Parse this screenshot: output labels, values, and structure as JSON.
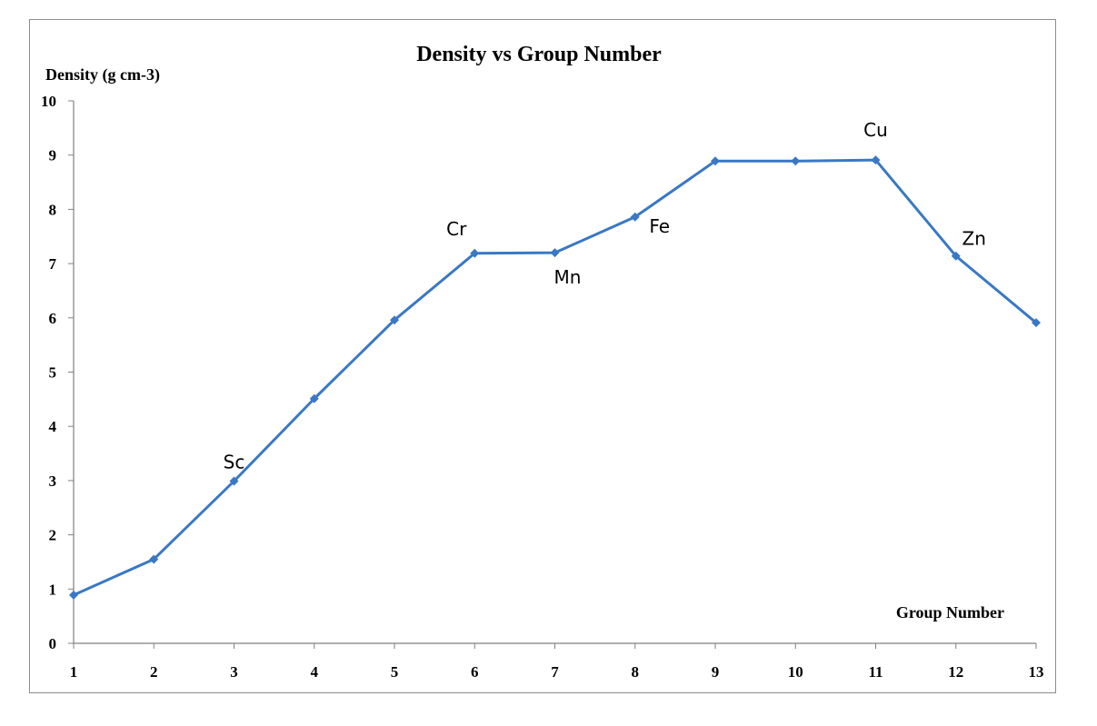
{
  "chart_data": {
    "type": "line",
    "title": "Density vs Group Number",
    "xlabel": "Group Number",
    "ylabel": "Density (g cm-3)",
    "x": [
      1,
      2,
      3,
      4,
      5,
      6,
      7,
      8,
      9,
      10,
      11,
      12,
      13
    ],
    "xticks": [
      "1",
      "2",
      "3",
      "4",
      "5",
      "6",
      "7",
      "8",
      "9",
      "10",
      "11",
      "12",
      "13"
    ],
    "yticks": [
      "0",
      "1",
      "2",
      "3",
      "4",
      "5",
      "6",
      "7",
      "8",
      "9",
      "10"
    ],
    "ylim": [
      0,
      10
    ],
    "grid": false,
    "legend": "none",
    "series": [
      {
        "values": [
          0.89,
          1.55,
          2.99,
          4.51,
          5.96,
          7.19,
          7.2,
          7.86,
          8.89,
          8.89,
          8.91,
          7.14,
          5.91
        ],
        "color": "#3a78c4",
        "marker": "diamond"
      }
    ],
    "annotations": [
      {
        "text": "Sc",
        "x": 3,
        "position": "above"
      },
      {
        "text": "Cr",
        "x": 6,
        "position": "above-left"
      },
      {
        "text": "Mn",
        "x": 7,
        "position": "below"
      },
      {
        "text": "Fe",
        "x": 8,
        "position": "below-right"
      },
      {
        "text": "Cu",
        "x": 11,
        "position": "above"
      },
      {
        "text": "Zn",
        "x": 12,
        "position": "above-right"
      }
    ]
  }
}
